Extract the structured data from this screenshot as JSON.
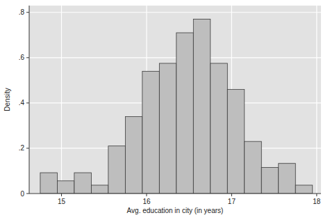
{
  "chart_data": {
    "type": "histogram",
    "x_label": "Avg. education in city (in years)",
    "y_label": "Density",
    "bins": [
      14.75,
      14.95,
      15.15,
      15.35,
      15.55,
      15.75,
      15.95,
      16.15,
      16.35,
      16.55,
      16.75,
      16.95,
      17.15,
      17.35,
      17.55,
      17.75,
      17.95
    ],
    "values": [
      0.092,
      0.056,
      0.092,
      0.037,
      0.21,
      0.34,
      0.54,
      0.575,
      0.71,
      0.77,
      0.575,
      0.46,
      0.23,
      0.115,
      0.133,
      0.037
    ],
    "color": "#bebebe",
    "xlim": [
      14.62,
      18.05
    ],
    "xticks": [
      15,
      16,
      17,
      18
    ],
    "ylim": [
      0,
      0.83
    ],
    "yticks": [
      0,
      {
        "value": 0.2,
        "label": ".2"
      },
      {
        "value": 0.4,
        "label": ".4"
      },
      {
        "value": 0.6,
        "label": ".6"
      },
      {
        "value": 0.8,
        "label": ".8"
      }
    ],
    "grid": true
  }
}
